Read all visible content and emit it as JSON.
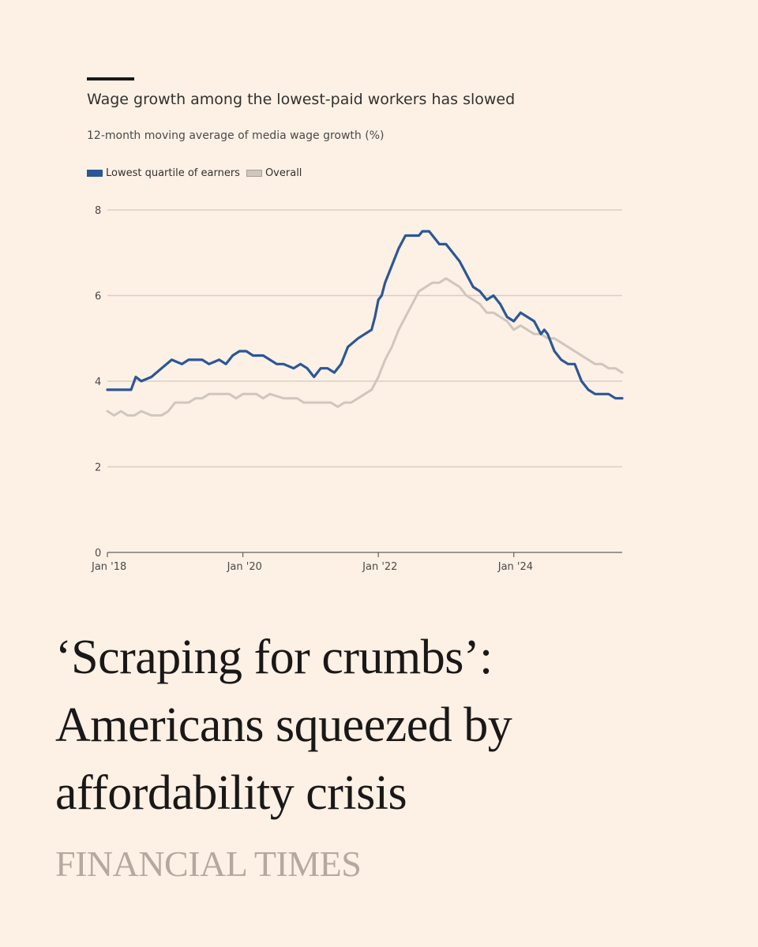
{
  "chart_data": {
    "type": "line",
    "title": "Wage growth among the lowest-paid workers has slowed",
    "subtitle": "12-month moving average of media wage growth (%)",
    "legend": [
      "Lowest quartile of earners",
      "Overall"
    ],
    "ylim": [
      0,
      8
    ],
    "yticks": [
      0,
      2,
      4,
      6,
      8
    ],
    "xlim": [
      2018.0,
      2025.6
    ],
    "xticks": [
      {
        "value": 2018,
        "label": "Jan '18"
      },
      {
        "value": 2020,
        "label": "Jan '20"
      },
      {
        "value": 2022,
        "label": "Jan '22"
      },
      {
        "value": 2024,
        "label": "Jan '24"
      }
    ],
    "series": [
      {
        "name": "Lowest quartile of earners",
        "color": "#2b5796",
        "x": [
          2018.0,
          2018.2,
          2018.35,
          2018.42,
          2018.5,
          2018.65,
          2018.8,
          2018.95,
          2019.1,
          2019.2,
          2019.3,
          2019.4,
          2019.5,
          2019.65,
          2019.75,
          2019.85,
          2019.95,
          2020.05,
          2020.15,
          2020.3,
          2020.5,
          2020.6,
          2020.75,
          2020.85,
          2020.95,
          2021.05,
          2021.15,
          2021.25,
          2021.35,
          2021.45,
          2021.55,
          2021.7,
          2021.8,
          2021.9,
          2021.95,
          2022.0,
          2022.05,
          2022.1,
          2022.2,
          2022.3,
          2022.4,
          2022.5,
          2022.6,
          2022.65,
          2022.75,
          2022.8,
          2022.9,
          2023.0,
          2023.1,
          2023.2,
          2023.3,
          2023.4,
          2023.5,
          2023.6,
          2023.7,
          2023.8,
          2023.9,
          2024.0,
          2024.1,
          2024.2,
          2024.3,
          2024.4,
          2024.45,
          2024.5,
          2024.55,
          2024.6,
          2024.7,
          2024.8,
          2024.9,
          2025.0,
          2025.1,
          2025.2,
          2025.3,
          2025.4,
          2025.5,
          2025.6
        ],
        "values": [
          3.8,
          3.8,
          3.8,
          4.1,
          4.0,
          4.1,
          4.3,
          4.5,
          4.4,
          4.5,
          4.5,
          4.5,
          4.4,
          4.5,
          4.4,
          4.6,
          4.7,
          4.7,
          4.6,
          4.6,
          4.4,
          4.4,
          4.3,
          4.4,
          4.3,
          4.1,
          4.3,
          4.3,
          4.2,
          4.4,
          4.8,
          5.0,
          5.1,
          5.2,
          5.5,
          5.9,
          6.0,
          6.3,
          6.7,
          7.1,
          7.4,
          7.4,
          7.4,
          7.5,
          7.5,
          7.4,
          7.2,
          7.2,
          7.0,
          6.8,
          6.5,
          6.2,
          6.1,
          5.9,
          6.0,
          5.8,
          5.5,
          5.4,
          5.6,
          5.5,
          5.4,
          5.1,
          5.2,
          5.1,
          4.9,
          4.7,
          4.5,
          4.4,
          4.4,
          4.0,
          3.8,
          3.7,
          3.7,
          3.7,
          3.6,
          3.6
        ]
      },
      {
        "name": "Overall",
        "color": "#cfc6bd",
        "x": [
          2018.0,
          2018.1,
          2018.2,
          2018.3,
          2018.4,
          2018.5,
          2018.65,
          2018.8,
          2018.9,
          2019.0,
          2019.1,
          2019.2,
          2019.3,
          2019.4,
          2019.5,
          2019.7,
          2019.8,
          2019.9,
          2020.0,
          2020.2,
          2020.3,
          2020.4,
          2020.6,
          2020.8,
          2020.9,
          2021.1,
          2021.3,
          2021.4,
          2021.5,
          2021.6,
          2021.7,
          2021.8,
          2021.9,
          2022.0,
          2022.1,
          2022.2,
          2022.3,
          2022.4,
          2022.5,
          2022.6,
          2022.7,
          2022.8,
          2022.9,
          2023.0,
          2023.1,
          2023.2,
          2023.3,
          2023.4,
          2023.5,
          2023.6,
          2023.7,
          2023.8,
          2023.9,
          2024.0,
          2024.1,
          2024.2,
          2024.3,
          2024.4,
          2024.5,
          2024.6,
          2024.7,
          2024.8,
          2024.9,
          2025.0,
          2025.1,
          2025.2,
          2025.3,
          2025.4,
          2025.5,
          2025.6
        ],
        "values": [
          3.3,
          3.2,
          3.3,
          3.2,
          3.2,
          3.3,
          3.2,
          3.2,
          3.3,
          3.5,
          3.5,
          3.5,
          3.6,
          3.6,
          3.7,
          3.7,
          3.7,
          3.6,
          3.7,
          3.7,
          3.6,
          3.7,
          3.6,
          3.6,
          3.5,
          3.5,
          3.5,
          3.4,
          3.5,
          3.5,
          3.6,
          3.7,
          3.8,
          4.1,
          4.5,
          4.8,
          5.2,
          5.5,
          5.8,
          6.1,
          6.2,
          6.3,
          6.3,
          6.4,
          6.3,
          6.2,
          6.0,
          5.9,
          5.8,
          5.6,
          5.6,
          5.5,
          5.4,
          5.2,
          5.3,
          5.2,
          5.1,
          5.1,
          5.0,
          5.0,
          4.9,
          4.8,
          4.7,
          4.6,
          4.5,
          4.4,
          4.4,
          4.3,
          4.3,
          4.2
        ]
      }
    ]
  },
  "headline_lines": [
    "‘Scraping for crumbs’:",
    "Americans squeezed by",
    "affordability crisis"
  ],
  "brand": "FINANCIAL TIMES"
}
